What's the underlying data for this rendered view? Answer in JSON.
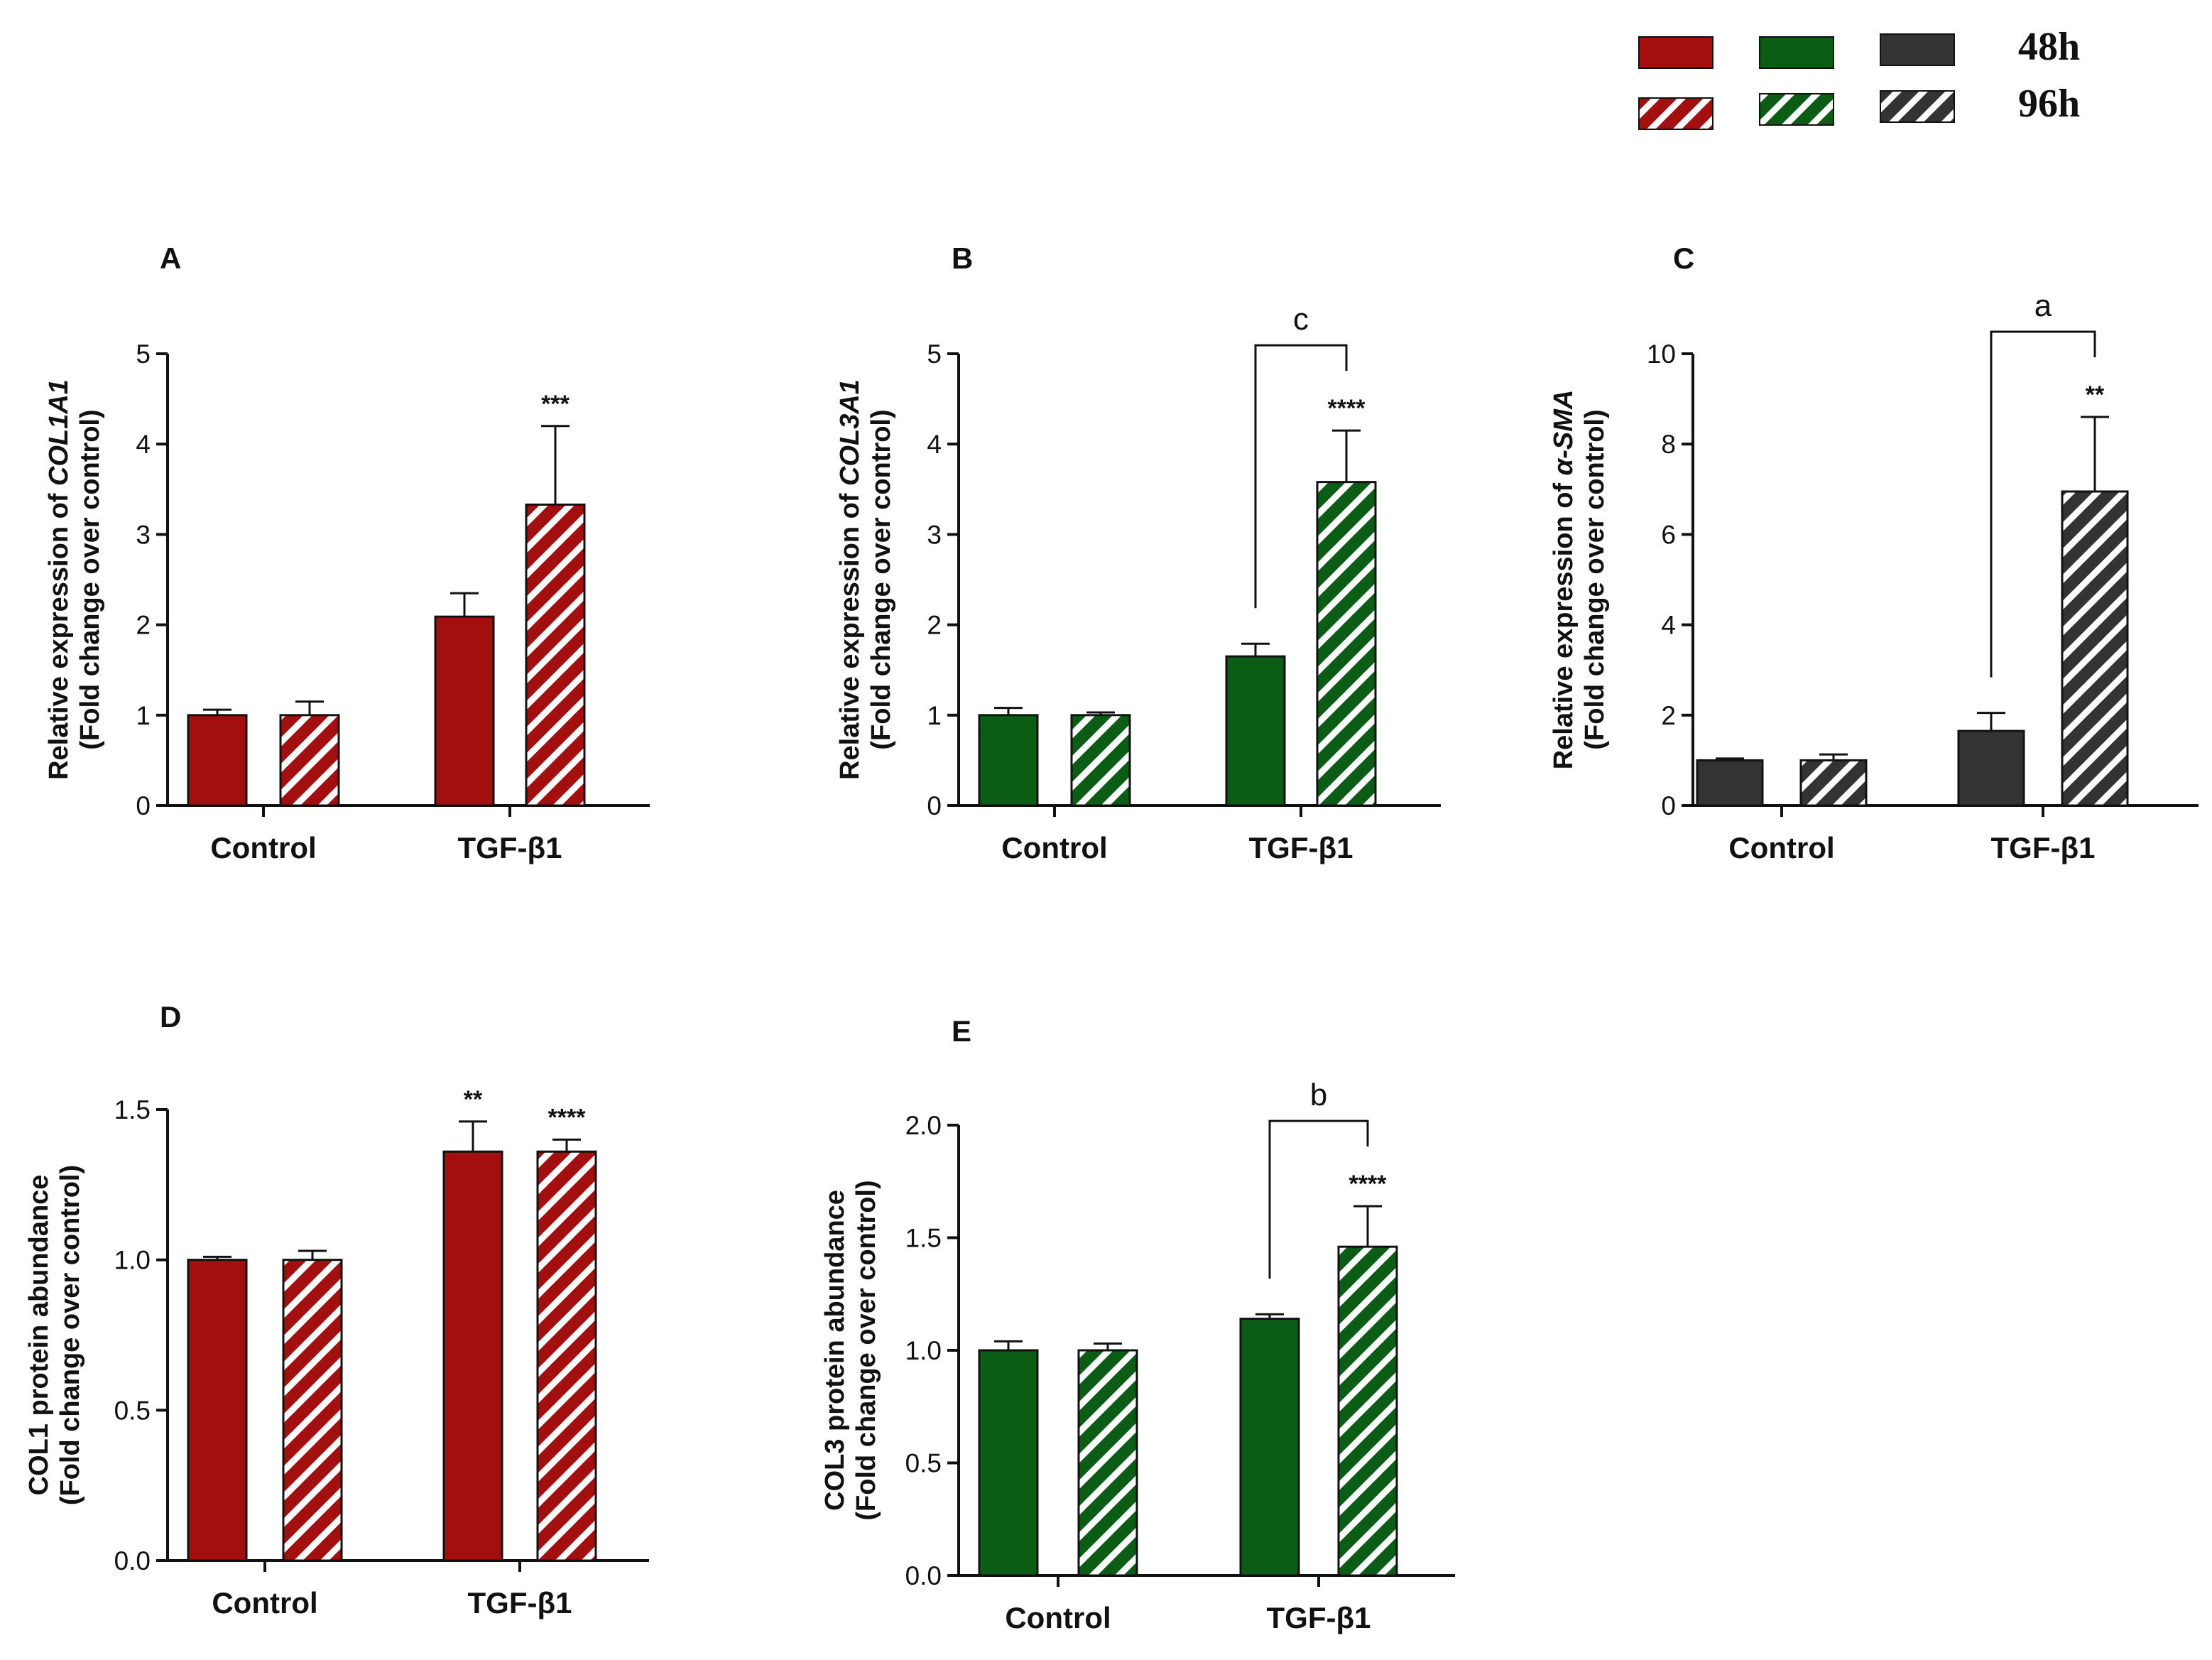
{
  "colors": {
    "red": "#a30e0e",
    "green": "#0b5c14",
    "gray": "#333333"
  },
  "legend": {
    "label_48h": "48h",
    "label_96h": "96h"
  },
  "chart_data": [
    {
      "id": "A",
      "panel": "A",
      "type": "bar",
      "ylabel_prefix": "Relative expression of ",
      "ylabel_gene": "COL1A1",
      "ylabel_line2": "(Fold change over control)",
      "categories": [
        "Control",
        "TGF-β1"
      ],
      "ylim": [
        0,
        5
      ],
      "yticks": [
        0,
        1,
        2,
        3,
        4,
        5
      ],
      "ytick_labels": [
        "0",
        "1",
        "2",
        "3",
        "4",
        "5"
      ],
      "color": "red",
      "series": [
        {
          "name": "48h",
          "values": [
            1.0,
            2.09
          ],
          "errors": [
            0.06,
            0.26
          ]
        },
        {
          "name": "96h",
          "values": [
            1.0,
            3.33
          ],
          "errors": [
            0.15,
            0.87
          ]
        }
      ],
      "significance": [
        {
          "series": "96h",
          "category": "TGF-β1",
          "label": "***"
        }
      ],
      "bracket": null
    },
    {
      "id": "B",
      "panel": "B",
      "type": "bar",
      "ylabel_prefix": "Relative expression of ",
      "ylabel_gene": "COL3A1",
      "ylabel_line2": "(Fold change over control)",
      "categories": [
        "Control",
        "TGF-β1"
      ],
      "ylim": [
        0,
        5
      ],
      "yticks": [
        0,
        1,
        2,
        3,
        4,
        5
      ],
      "ytick_labels": [
        "0",
        "1",
        "2",
        "3",
        "4",
        "5"
      ],
      "color": "green",
      "series": [
        {
          "name": "48h",
          "values": [
            1.0,
            1.65
          ],
          "errors": [
            0.08,
            0.14
          ]
        },
        {
          "name": "96h",
          "values": [
            1.0,
            3.58
          ],
          "errors": [
            0.03,
            0.57
          ]
        }
      ],
      "significance": [
        {
          "series": "96h",
          "category": "TGF-β1",
          "label": "****"
        }
      ],
      "bracket": {
        "label": "c"
      }
    },
    {
      "id": "C",
      "panel": "C",
      "type": "bar",
      "ylabel_prefix": "Relative expression of ",
      "ylabel_gene": "α-SMA",
      "ylabel_line2": "(Fold change over control)",
      "categories": [
        "Control",
        "TGF-β1"
      ],
      "ylim": [
        0,
        10
      ],
      "yticks": [
        0,
        2,
        4,
        6,
        8,
        10
      ],
      "ytick_labels": [
        "0",
        "2",
        "4",
        "6",
        "8",
        "10"
      ],
      "color": "gray",
      "series": [
        {
          "name": "48h",
          "values": [
            1.0,
            1.65
          ],
          "errors": [
            0.04,
            0.4
          ]
        },
        {
          "name": "96h",
          "values": [
            1.0,
            6.95
          ],
          "errors": [
            0.13,
            1.65
          ]
        }
      ],
      "significance": [
        {
          "series": "96h",
          "category": "TGF-β1",
          "label": "**"
        }
      ],
      "bracket": {
        "label": "a"
      }
    },
    {
      "id": "D",
      "panel": "D",
      "type": "bar",
      "ylabel_prefix": "COL1 protein abundance",
      "ylabel_gene": "",
      "ylabel_line2": "(Fold change over control)",
      "categories": [
        "Control",
        "TGF-β1"
      ],
      "ylim": [
        0,
        1.5
      ],
      "yticks": [
        0,
        0.5,
        1.0,
        1.5
      ],
      "ytick_labels": [
        "0.0",
        "0.5",
        "1.0",
        "1.5"
      ],
      "color": "red",
      "series": [
        {
          "name": "48h",
          "values": [
            1.0,
            1.36
          ],
          "errors": [
            0.01,
            0.1
          ]
        },
        {
          "name": "96h",
          "values": [
            1.0,
            1.36
          ],
          "errors": [
            0.03,
            0.04
          ]
        }
      ],
      "significance": [
        {
          "series": "48h",
          "category": "TGF-β1",
          "label": "**"
        },
        {
          "series": "96h",
          "category": "TGF-β1",
          "label": "****"
        }
      ],
      "bracket": null
    },
    {
      "id": "E",
      "panel": "E",
      "type": "bar",
      "ylabel_prefix": "COL3 protein abundance",
      "ylabel_gene": "",
      "ylabel_line2": "(Fold change over control)",
      "categories": [
        "Control",
        "TGF-β1"
      ],
      "ylim": [
        0,
        2.0
      ],
      "yticks": [
        0,
        0.5,
        1.0,
        1.5,
        2.0
      ],
      "ytick_labels": [
        "0.0",
        "0.5",
        "1.0",
        "1.5",
        "2.0"
      ],
      "color": "green",
      "series": [
        {
          "name": "48h",
          "values": [
            1.0,
            1.14
          ],
          "errors": [
            0.04,
            0.02
          ]
        },
        {
          "name": "96h",
          "values": [
            1.0,
            1.46
          ],
          "errors": [
            0.03,
            0.18
          ]
        }
      ],
      "significance": [
        {
          "series": "96h",
          "category": "TGF-β1",
          "label": "****"
        }
      ],
      "bracket": {
        "label": "b"
      }
    }
  ]
}
